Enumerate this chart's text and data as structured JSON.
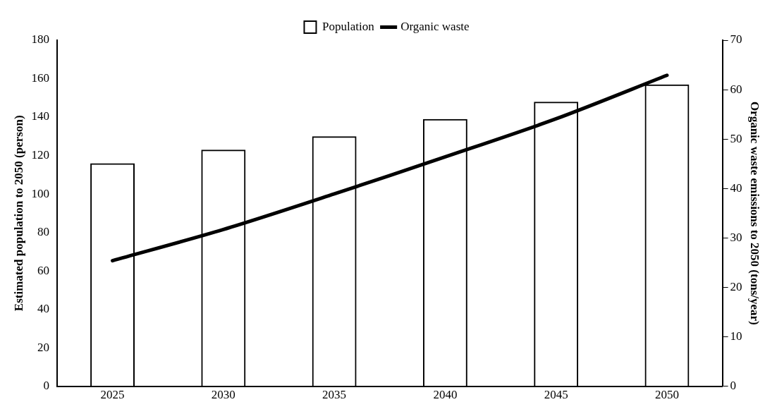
{
  "chart_data": {
    "type": "bar",
    "categories": [
      "2025",
      "2030",
      "2035",
      "2040",
      "2045",
      "2050"
    ],
    "series": [
      {
        "name": "Population",
        "color": "#000000",
        "values": [
          116,
          123,
          130,
          139,
          148,
          157
        ]
      },
      {
        "name": "Organic waste",
        "type": "line",
        "axis": "y2",
        "color": "#000000",
        "values": [
          25.4,
          31.7,
          38.9,
          46.4,
          54.1,
          62.9
        ]
      }
    ],
    "ylabel": "Estimated population to 2050 (person)",
    "y2label": "Organic waste emissions to 2050 (tons/year)",
    "ylim": [
      0,
      180
    ],
    "yticks": [
      0,
      20,
      40,
      60,
      80,
      100,
      120,
      140,
      160,
      180
    ],
    "y2lim": [
      0,
      70
    ],
    "y2ticks": [
      0,
      10,
      20,
      30,
      40,
      50,
      60,
      70
    ],
    "grid": false,
    "legend": "top",
    "marker": "none",
    "line_style": "solid"
  }
}
